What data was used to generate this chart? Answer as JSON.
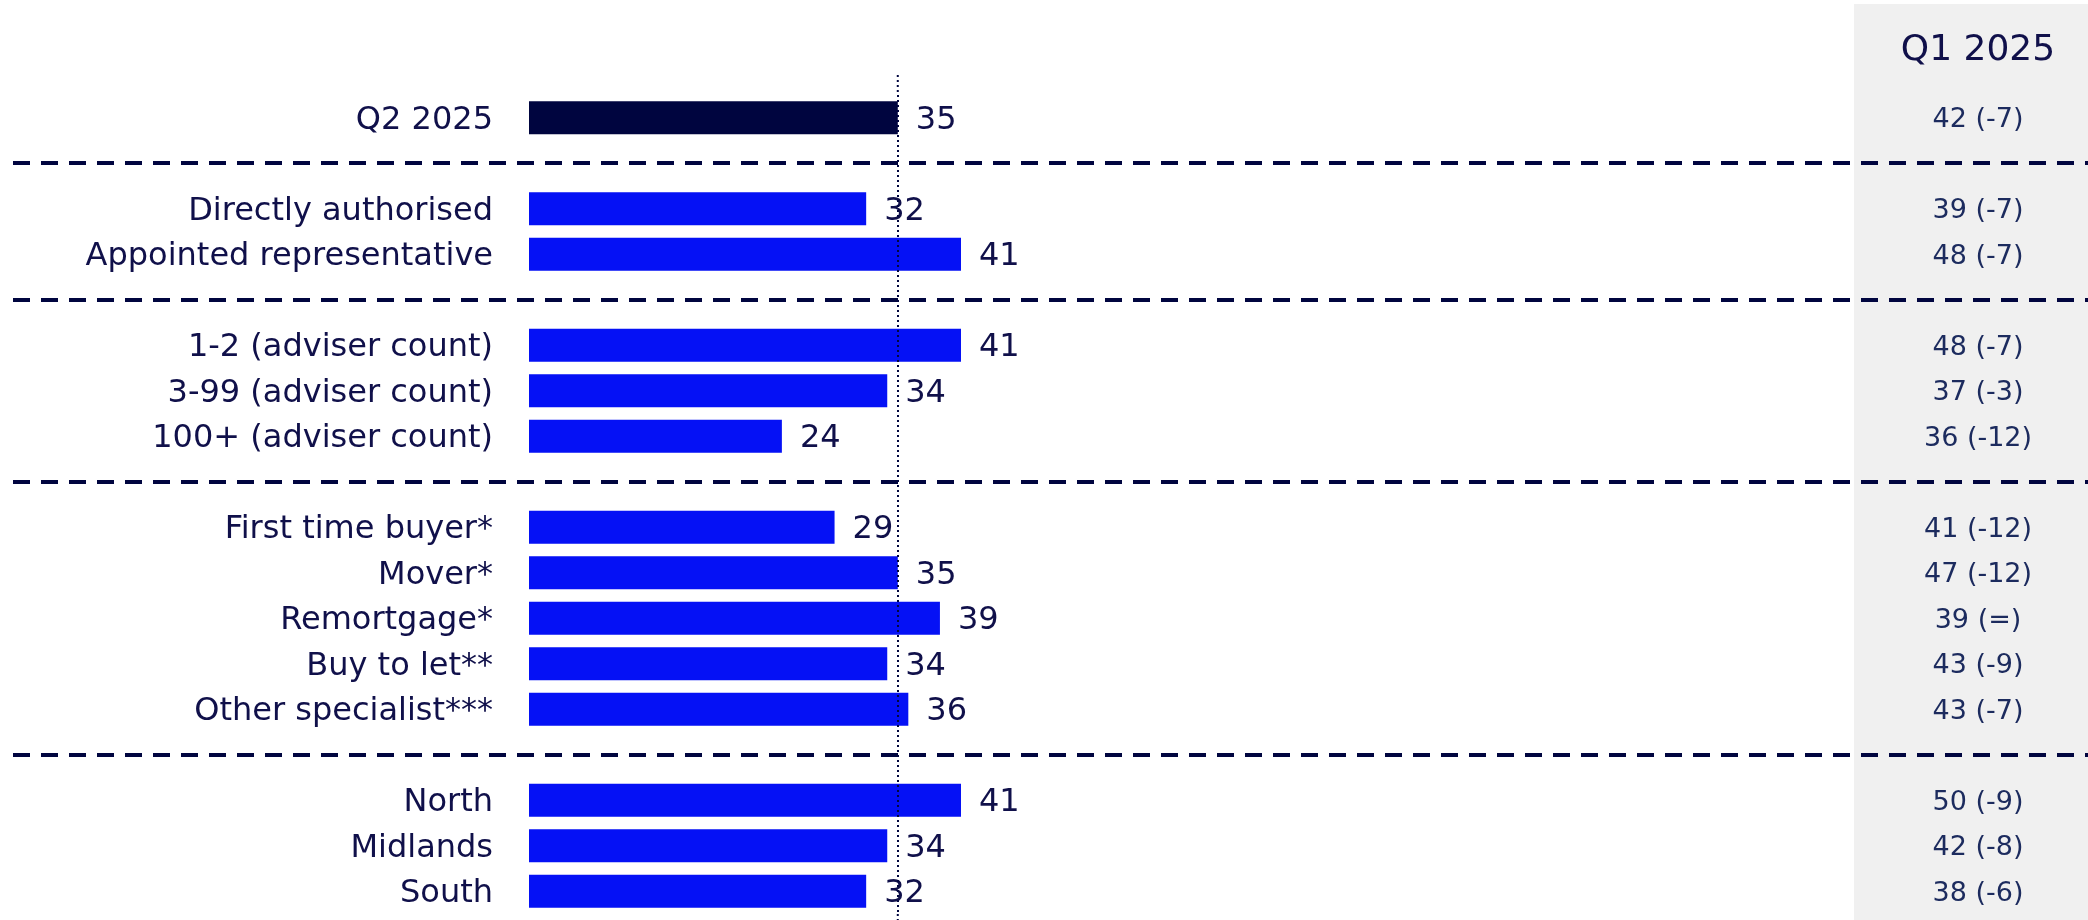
{
  "chart_data": {
    "type": "bar",
    "orientation": "horizontal",
    "categories": [
      "Q2 2025",
      null,
      "Directly authorised",
      "Appointed representative",
      null,
      "1-2 (adviser count)",
      "3-99 (adviser count)",
      "100+ (adviser count)",
      null,
      "First time buyer*",
      "Mover*",
      "Remortgage*",
      "Buy to let**",
      "Other specialist***",
      null,
      "North",
      "Midlands",
      "South"
    ],
    "values": [
      35,
      null,
      32,
      41,
      null,
      41,
      34,
      24,
      null,
      29,
      35,
      39,
      34,
      36,
      null,
      41,
      34,
      32
    ],
    "colors": [
      "#00053f",
      null,
      "#0511f5",
      "#0511f5",
      null,
      "#0511f5",
      "#0511f5",
      "#0511f5",
      null,
      "#0511f5",
      "#0511f5",
      "#0511f5",
      "#0511f5",
      "#0511f5",
      null,
      "#0511f5",
      "#0511f5",
      "#0511f5"
    ],
    "data_labels": true,
    "tick_labels": "y",
    "ref_lines": [
      {
        "axis": "x",
        "value": 35,
        "color": "#00053f",
        "line_style": "dotted"
      }
    ],
    "annotations": [
      "Q1 2025",
      "42 (-7)",
      "39 (-7)",
      "48 (-7)",
      "48 (-7)",
      "37 (-3)",
      "36 (-12)",
      "41 (-12)",
      "47 (-12)",
      "39 (=)",
      "43 (-9)",
      "43 (-7)",
      "50 (-9)",
      "42 (-8)",
      "38 (-6)"
    ]
  }
}
